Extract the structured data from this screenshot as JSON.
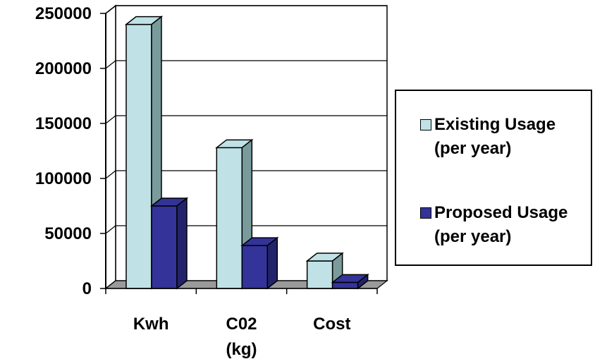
{
  "chart_data": {
    "type": "bar",
    "categories": [
      "Kwh",
      "C02 (kg)",
      "Cost"
    ],
    "category_lines": [
      [
        "Kwh"
      ],
      [
        "C02",
        "(kg)"
      ],
      [
        "Cost"
      ]
    ],
    "series": [
      {
        "name_lines": [
          "Existing Usage",
          "(per year)"
        ],
        "values": [
          240000,
          128000,
          25000
        ],
        "color": "#c0e2e6",
        "side_color": "#7a9b9b"
      },
      {
        "name_lines": [
          "Proposed Usage",
          "(per year)"
        ],
        "values": [
          75000,
          39000,
          5500
        ],
        "color": "#333399",
        "side_color": "#23236b"
      }
    ],
    "yticks": [
      0,
      50000,
      100000,
      150000,
      200000,
      250000
    ],
    "ylim": [
      0,
      250000
    ],
    "grid": true,
    "legend_position": "right",
    "style": "3d-clustered-column"
  }
}
